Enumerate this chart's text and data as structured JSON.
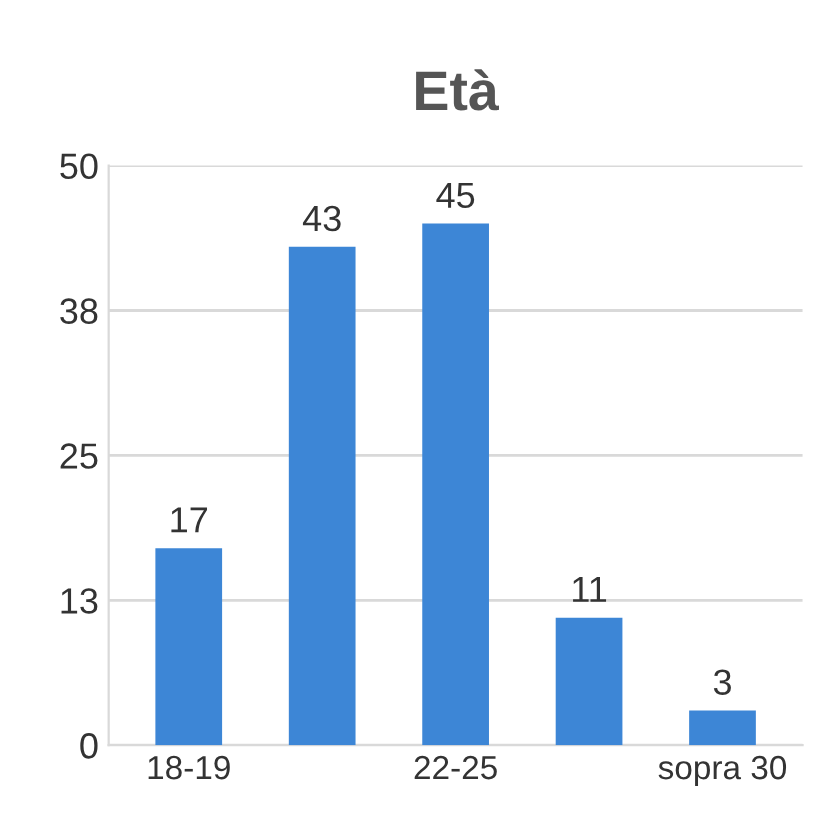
{
  "chart_data": {
    "type": "bar",
    "title": "Età",
    "categories": [
      "18-19",
      null,
      "22-25",
      null,
      "sopra 30"
    ],
    "values": [
      17,
      43,
      45,
      11,
      3
    ],
    "color": "#3d86d6",
    "ylim": [
      0,
      50
    ],
    "yticks": [
      0,
      {
        "value": 12.5,
        "label": "13"
      },
      25,
      {
        "value": 37.5,
        "label": "38"
      },
      50
    ],
    "grid": "y",
    "data_labels": true
  }
}
